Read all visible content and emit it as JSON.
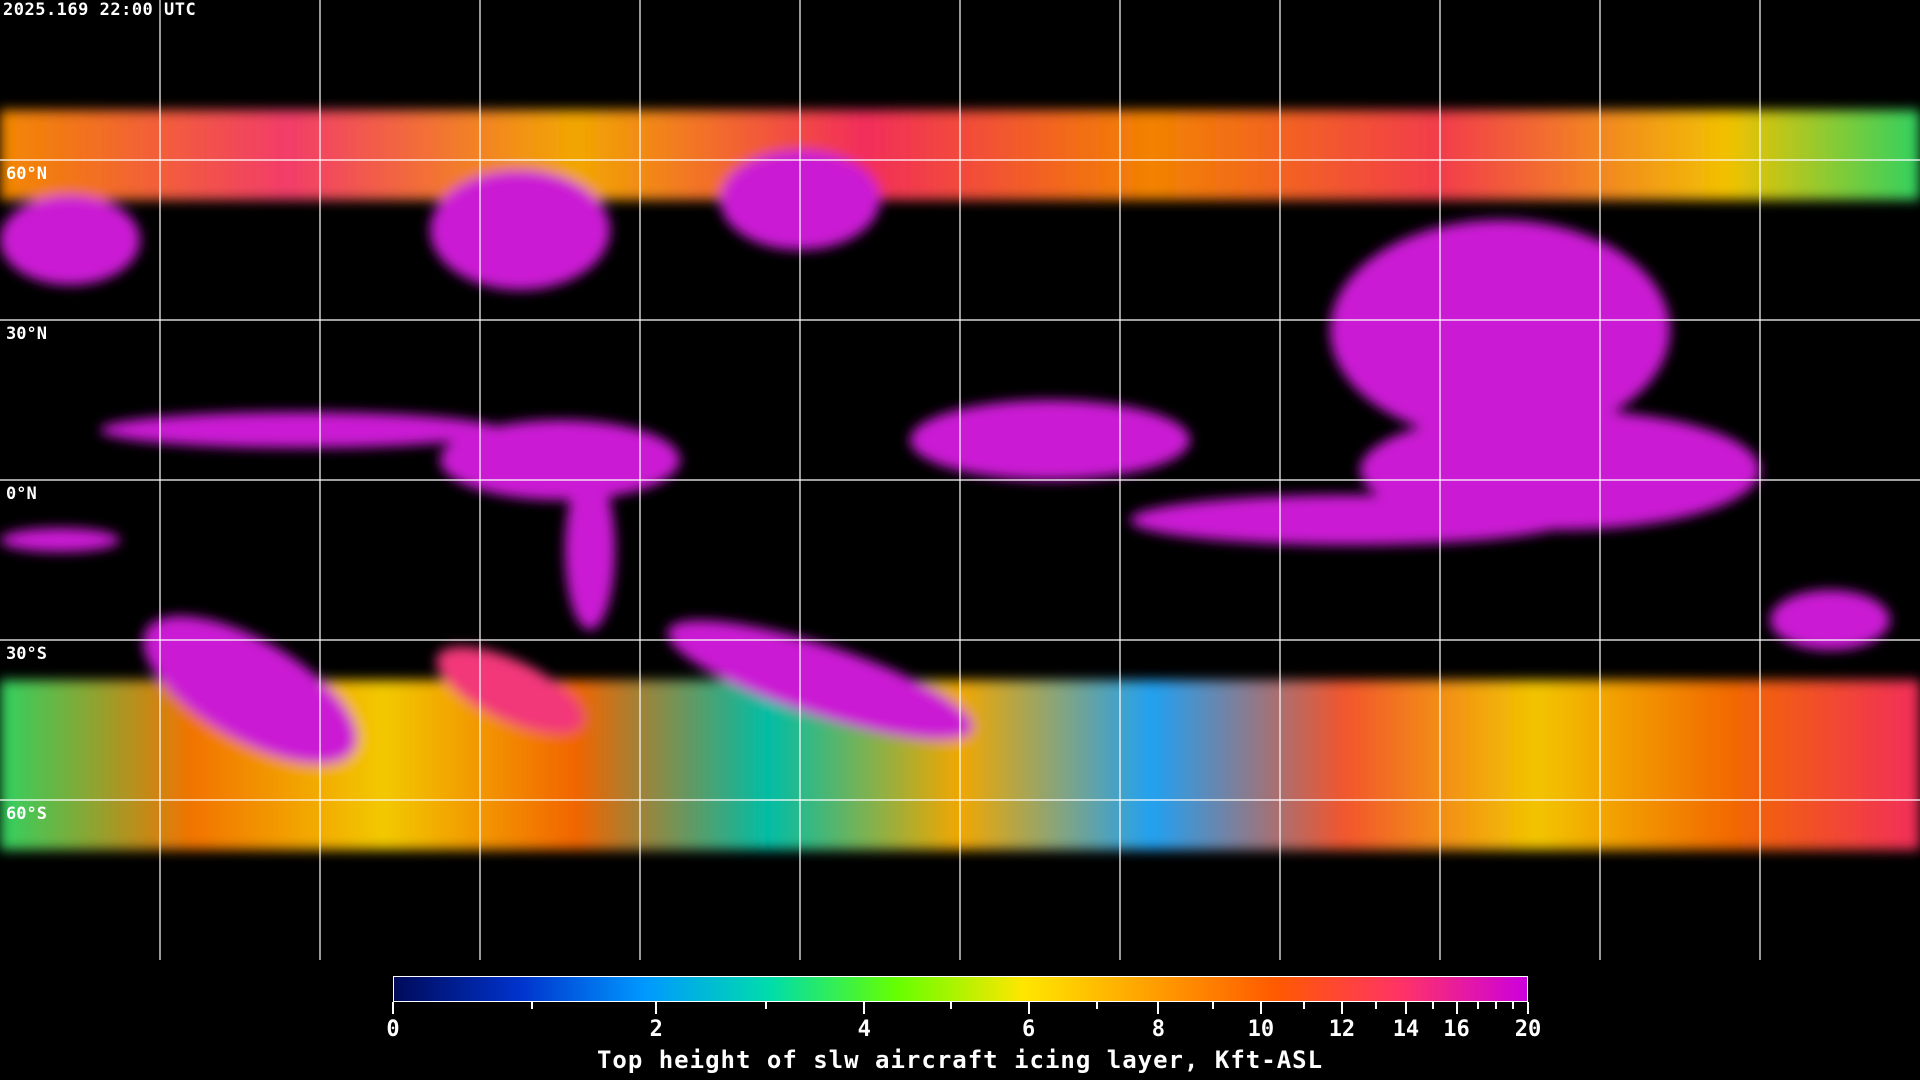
{
  "timestamp": "2025.169 22:00 UTC",
  "projection": "equirectangular",
  "grid": {
    "lon_spacing_deg": 30,
    "lat_spacing_deg": 30,
    "color": "#ffffff"
  },
  "lat_labels": [
    "60°N",
    "30°N",
    "0°N",
    "30°S",
    "60°S"
  ],
  "colorbar": {
    "title": "Top height of slw aircraft icing layer, Kft-ASL",
    "min": 0,
    "max": 20,
    "tick_labels": [
      "0",
      "2",
      "4",
      "6",
      "8",
      "10",
      "12",
      "14",
      "16",
      "20"
    ],
    "major_ticks": [
      0,
      2,
      4,
      6,
      8,
      10,
      12,
      14,
      16,
      20
    ],
    "minor_ticks": [
      1,
      3,
      5,
      7,
      9,
      11,
      13,
      15,
      17,
      18,
      19
    ],
    "colors": [
      "#000a5a",
      "#0033cc",
      "#0099ff",
      "#00ddaa",
      "#66ff00",
      "#ffe600",
      "#ffa000",
      "#ff5a00",
      "#ff3366",
      "#cc00dd"
    ]
  },
  "colors": {
    "background": "#000000",
    "coastline": "#ffffff",
    "dominant_field": "#d61ee0"
  }
}
